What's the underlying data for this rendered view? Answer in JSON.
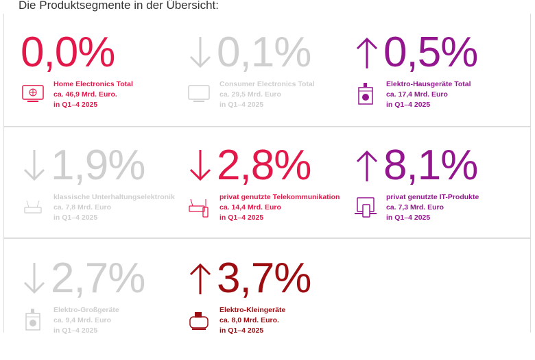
{
  "heading": "Die Produktsegmente in der Übersicht:",
  "segments": [
    {
      "value": "0,0%",
      "trend": "none",
      "color": "#e2184a",
      "icon": "tv-globe-icon",
      "name": "Home Electronics Total",
      "amount": "ca. 46,9 Mrd. Euro.",
      "period": "in Q1–4 2025"
    },
    {
      "value": "0,1%",
      "trend": "down",
      "color": "#cfcfcf",
      "icon": "tv-icon",
      "name": "Consumer Electronics Total",
      "amount": "ca. 29,5 Mrd. Euro",
      "period": "in Q1–4 2025"
    },
    {
      "value": "0,5%",
      "trend": "up",
      "color": "#94168f",
      "icon": "washing-machine-icon",
      "name": "Elektro-Hausgeräte Total",
      "amount": "ca. 17,4 Mrd. Euro",
      "period": "in Q1–4 2025"
    },
    {
      "value": "1,9%",
      "trend": "down",
      "color": "#cfcfcf",
      "icon": "router-icon",
      "name": "klassische Unterhaltungselektronik",
      "amount": "ca. 7,8 Mrd. Euro",
      "period": "in Q1–4 2025"
    },
    {
      "value": "2,8%",
      "trend": "down",
      "color": "#e2184a",
      "icon": "router-phone-icon",
      "name": "privat genutzte Telekommunikation",
      "amount": "ca. 14,4 Mrd. Euro",
      "period": "in Q1–4 2025"
    },
    {
      "value": "8,1%",
      "trend": "up",
      "color": "#94168f",
      "icon": "laptop-tablet-icon",
      "name": "privat genutzte IT-Produkte",
      "amount": "ca. 7,3 Mrd. Euro",
      "period": "in Q1–4 2025"
    },
    {
      "value": "2,7%",
      "trend": "down",
      "color": "#cfcfcf",
      "icon": "washing-machine-icon",
      "name": "Elektro-Großgeräte",
      "amount": "ca. 9,4 Mrd. Euro",
      "period": "in Q1–4 2025"
    },
    {
      "value": "3,7%",
      "trend": "up",
      "color": "#9c0d12",
      "icon": "toaster-icon",
      "name": "Elektro-Kleingeräte",
      "amount": "ca. 8,0 Mrd. Euro.",
      "period": "in Q1–4 2025"
    }
  ]
}
